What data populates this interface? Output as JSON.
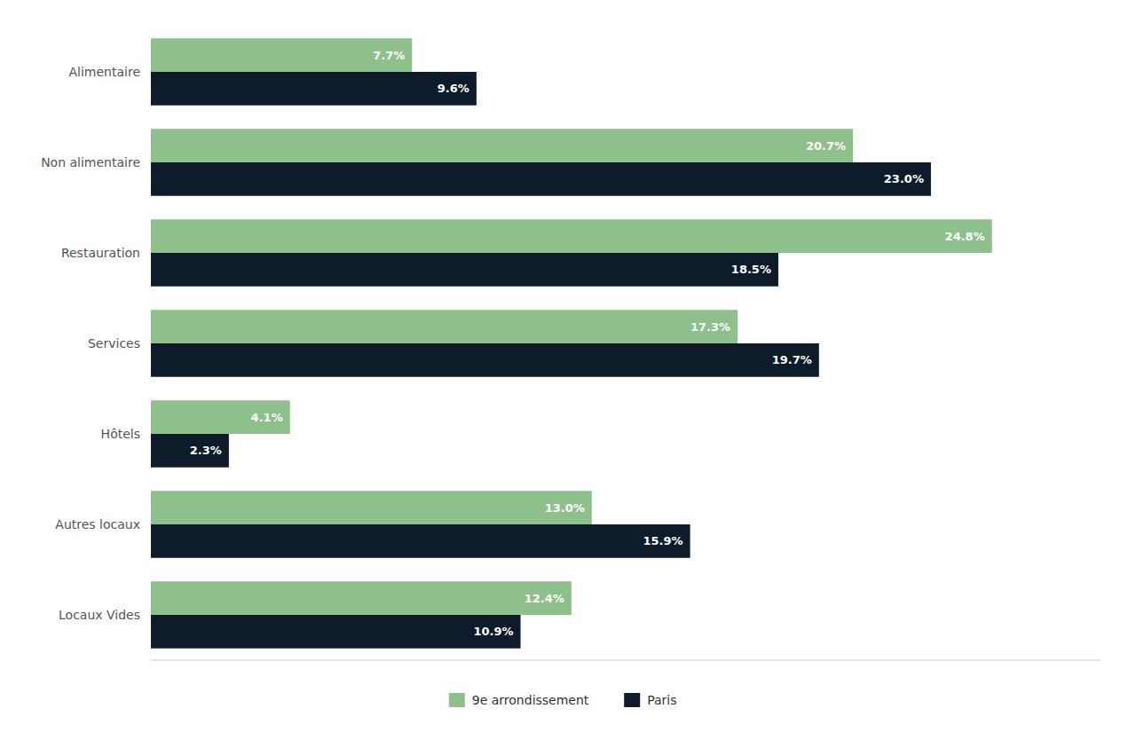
{
  "chart_data": {
    "type": "bar",
    "orientation": "horizontal",
    "categories": [
      "Alimentaire",
      "Non alimentaire",
      "Restauration",
      "Services",
      "Hôtels",
      "Autres locaux",
      "Locaux Vides"
    ],
    "series": [
      {
        "name": "9e arrondissement",
        "color": "#8DC08A",
        "values": [
          7.7,
          20.7,
          24.8,
          17.3,
          4.1,
          13.0,
          12.4
        ],
        "value_labels": [
          "7.7%",
          "20.7%",
          "24.8%",
          "17.3%",
          "4.1%",
          "13.0%",
          "12.4%"
        ]
      },
      {
        "name": "Paris",
        "color": "#0D1B2A",
        "values": [
          9.6,
          23.0,
          18.5,
          19.7,
          2.3,
          15.9,
          10.9
        ],
        "value_labels": [
          "9.6%",
          "23.0%",
          "18.5%",
          "19.7%",
          "2.3%",
          "15.9%",
          "10.9%"
        ]
      }
    ],
    "xlim": [
      0,
      28
    ],
    "data_labels": true,
    "tick_labels": "y",
    "grid": false,
    "legend": "bottom"
  }
}
